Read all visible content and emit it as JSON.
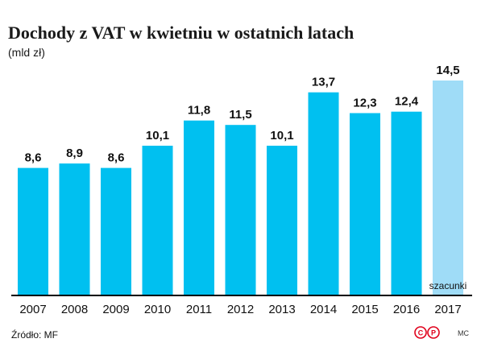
{
  "chart_data": {
    "type": "bar",
    "title": "Dochody z VAT w kwietniu w ostatnich latach",
    "subtitle": "(mld zł)",
    "categories": [
      "2007",
      "2008",
      "2009",
      "2010",
      "2011",
      "2012",
      "2013",
      "2014",
      "2015",
      "2016",
      "2017"
    ],
    "values": [
      8.6,
      8.9,
      8.6,
      10.1,
      11.8,
      11.5,
      10.1,
      13.7,
      12.3,
      12.4,
      14.5
    ],
    "value_labels": [
      "8,6",
      "8,9",
      "8,6",
      "10,1",
      "11,8",
      "11,5",
      "10,1",
      "13,7",
      "12,3",
      "12,4",
      "14,5"
    ],
    "estimated_category": "2017",
    "estimate_label": "szacunki",
    "xlabel": "",
    "ylabel": "",
    "ylim": [
      0,
      14.5
    ],
    "grid": false,
    "legend": "none",
    "colors": {
      "bar": "#00c0f0",
      "bar_estimated": "#9fdcf7",
      "axis": "#000000"
    }
  },
  "footer": {
    "source": "Źródło: MF",
    "logo_letters": [
      "C",
      "P"
    ],
    "logo_colors": [
      "#e0001b",
      "#e0001b"
    ],
    "credit": "MC"
  }
}
